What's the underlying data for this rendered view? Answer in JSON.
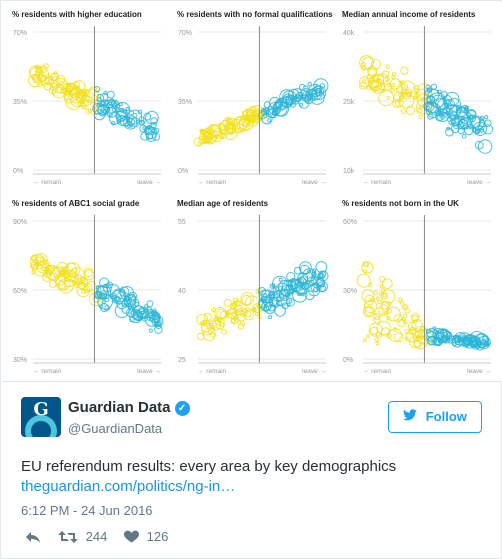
{
  "panels": [
    {
      "title": "% residents with higher education",
      "y_top": "70%",
      "y_mid": "35%",
      "y_bot": "0%",
      "slope": "down",
      "spread": 0.9
    },
    {
      "title": "% residents with no formal qualifications",
      "y_top": "70%",
      "y_mid": "35%",
      "y_bot": "0%",
      "slope": "up",
      "spread": 0.7
    },
    {
      "title": "Median annual income of residents",
      "y_top": "40k",
      "y_mid": "25k",
      "y_bot": "10k",
      "slope": "down",
      "spread": 1.4
    },
    {
      "title": "% residents of ABC1 social grade",
      "y_top": "90%",
      "y_mid": "60%",
      "y_bot": "30%",
      "slope": "down",
      "spread": 1.0
    },
    {
      "title": "Median age of residents",
      "y_top": "55",
      "y_mid": "40",
      "y_bot": "25",
      "slope": "up",
      "spread": 1.3
    },
    {
      "title": "% residents not born in the UK",
      "y_top": "60%",
      "y_mid": "30%",
      "y_bot": "0%",
      "slope": "floor",
      "spread": 1.0
    }
  ],
  "axis": {
    "remain_label": "← remain",
    "leave_label": "leave →"
  },
  "colors": {
    "remain": "#f2e11d",
    "leave": "#2bb5d8"
  },
  "account": {
    "name": "Guardian Data",
    "handle": "@GuardianData",
    "avatar_letter": "G",
    "verified_icon": "✓"
  },
  "follow": {
    "label": "Follow",
    "icon": "twitter-bird-icon"
  },
  "tweet": {
    "text": "EU referendum results: every area by key demographics",
    "link": "theguardian.com/politics/ng-in…",
    "timestamp": "6:12 PM - 24 Jun 2016"
  },
  "actions": {
    "retweets": "244",
    "likes": "126"
  }
}
